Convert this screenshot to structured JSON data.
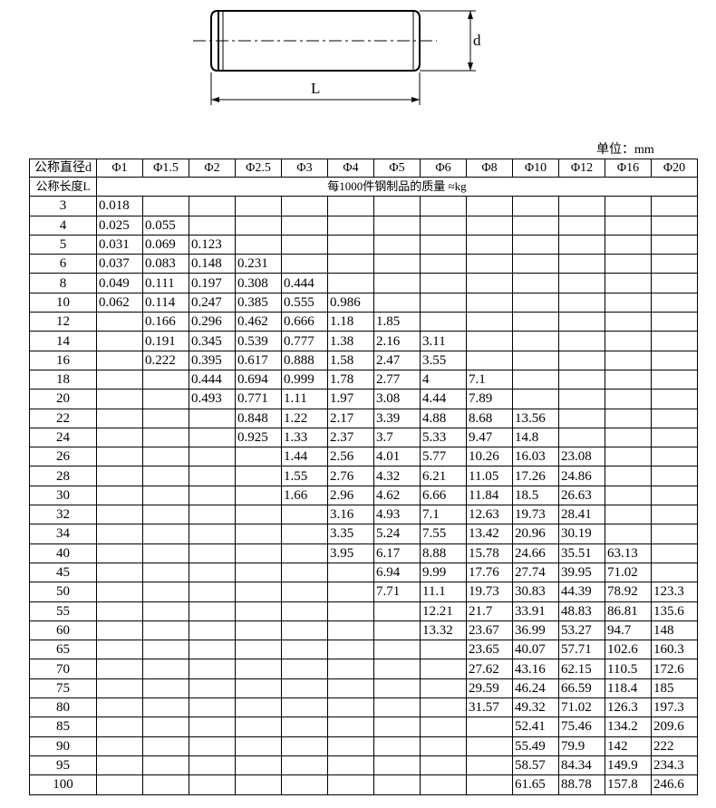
{
  "diagram": {
    "diameter_label": "d",
    "length_label": "L"
  },
  "unit": "单位：mm",
  "table": {
    "header": [
      "公称直径d",
      "Φ1",
      "Φ1.5",
      "Φ2",
      "Φ2.5",
      "Φ3",
      "Φ4",
      "Φ5",
      "Φ6",
      "Φ8",
      "Φ10",
      "Φ12",
      "Φ16",
      "Φ20"
    ],
    "subheader": [
      "公称长度L",
      "每1000件钢制品的质量 ≈kg"
    ],
    "rows": [
      [
        "3",
        "0.018",
        null,
        null,
        null,
        null,
        null,
        null,
        null,
        null,
        null,
        null,
        null,
        null
      ],
      [
        "4",
        "0.025",
        "0.055",
        null,
        null,
        null,
        null,
        null,
        null,
        null,
        null,
        null,
        null,
        null
      ],
      [
        "5",
        "0.031",
        "0.069",
        "0.123",
        null,
        null,
        null,
        null,
        null,
        null,
        null,
        null,
        null,
        null
      ],
      [
        "6",
        "0.037",
        "0.083",
        "0.148",
        "0.231",
        null,
        null,
        null,
        null,
        null,
        null,
        null,
        null,
        null
      ],
      [
        "8",
        "0.049",
        "0.111",
        "0.197",
        "0.308",
        "0.444",
        null,
        null,
        null,
        null,
        null,
        null,
        null,
        null
      ],
      [
        "10",
        "0.062",
        "0.114",
        "0.247",
        "0.385",
        "0.555",
        "0.986",
        null,
        null,
        null,
        null,
        null,
        null,
        null
      ],
      [
        "12",
        null,
        "0.166",
        "0.296",
        "0.462",
        "0.666",
        "1.18",
        "1.85",
        null,
        null,
        null,
        null,
        null,
        null
      ],
      [
        "14",
        null,
        "0.191",
        "0.345",
        "0.539",
        "0.777",
        "1.38",
        "2.16",
        "3.11",
        null,
        null,
        null,
        null,
        null
      ],
      [
        "16",
        null,
        "0.222",
        "0.395",
        "0.617",
        "0.888",
        "1.58",
        "2.47",
        "3.55",
        null,
        null,
        null,
        null,
        null
      ],
      [
        "18",
        null,
        null,
        "0.444",
        "0.694",
        "0.999",
        "1.78",
        "2.77",
        "4",
        "7.1",
        null,
        null,
        null,
        null
      ],
      [
        "20",
        null,
        null,
        "0.493",
        "0.771",
        "1.11",
        "1.97",
        "3.08",
        "4.44",
        "7.89",
        null,
        null,
        null,
        null
      ],
      [
        "22",
        null,
        null,
        null,
        "0.848",
        "1.22",
        "2.17",
        "3.39",
        "4.88",
        "8.68",
        "13.56",
        null,
        null,
        null
      ],
      [
        "24",
        null,
        null,
        null,
        "0.925",
        "1.33",
        "2.37",
        "3.7",
        "5.33",
        "9.47",
        "14.8",
        null,
        null,
        null
      ],
      [
        "26",
        null,
        null,
        null,
        null,
        "1.44",
        "2.56",
        "4.01",
        "5.77",
        "10.26",
        "16.03",
        "23.08",
        null,
        null
      ],
      [
        "28",
        null,
        null,
        null,
        null,
        "1.55",
        "2.76",
        "4.32",
        "6.21",
        "11.05",
        "17.26",
        "24.86",
        null,
        null
      ],
      [
        "30",
        null,
        null,
        null,
        null,
        "1.66",
        "2.96",
        "4.62",
        "6.66",
        "11.84",
        "18.5",
        "26.63",
        null,
        null
      ],
      [
        "32",
        null,
        null,
        null,
        null,
        null,
        "3.16",
        "4.93",
        "7.1",
        "12.63",
        "19.73",
        "28.41",
        null,
        null
      ],
      [
        "34",
        null,
        null,
        null,
        null,
        null,
        "3.35",
        "5.24",
        "7.55",
        "13.42",
        "20.96",
        "30.19",
        null,
        null
      ],
      [
        "40",
        null,
        null,
        null,
        null,
        null,
        "3.95",
        "6.17",
        "8.88",
        "15.78",
        "24.66",
        "35.51",
        "63.13",
        null
      ],
      [
        "45",
        null,
        null,
        null,
        null,
        null,
        null,
        "6.94",
        "9.99",
        "17.76",
        "27.74",
        "39.95",
        "71.02",
        null
      ],
      [
        "50",
        null,
        null,
        null,
        null,
        null,
        null,
        "7.71",
        "11.1",
        "19.73",
        "30.83",
        "44.39",
        "78.92",
        "123.3"
      ],
      [
        "55",
        null,
        null,
        null,
        null,
        null,
        null,
        null,
        "12.21",
        "21.7",
        "33.91",
        "48.83",
        "86.81",
        "135.6"
      ],
      [
        "60",
        null,
        null,
        null,
        null,
        null,
        null,
        null,
        "13.32",
        "23.67",
        "36.99",
        "53.27",
        "94.7",
        "148"
      ],
      [
        "65",
        null,
        null,
        null,
        null,
        null,
        null,
        null,
        null,
        "23.65",
        "40.07",
        "57.71",
        "102.6",
        "160.3"
      ],
      [
        "70",
        null,
        null,
        null,
        null,
        null,
        null,
        null,
        null,
        "27.62",
        "43.16",
        "62.15",
        "110.5",
        "172.6"
      ],
      [
        "75",
        null,
        null,
        null,
        null,
        null,
        null,
        null,
        null,
        "29.59",
        "46.24",
        "66.59",
        "118.4",
        "185"
      ],
      [
        "80",
        null,
        null,
        null,
        null,
        null,
        null,
        null,
        null,
        "31.57",
        "49.32",
        "71.02",
        "126.3",
        "197.3"
      ],
      [
        "85",
        null,
        null,
        null,
        null,
        null,
        null,
        null,
        null,
        null,
        "52.41",
        "75.46",
        "134.2",
        "209.6"
      ],
      [
        "90",
        null,
        null,
        null,
        null,
        null,
        null,
        null,
        null,
        null,
        "55.49",
        "79.9",
        "142",
        "222"
      ],
      [
        "95",
        null,
        null,
        null,
        null,
        null,
        null,
        null,
        null,
        null,
        "58.57",
        "84.34",
        "149.9",
        "234.3"
      ],
      [
        "100",
        null,
        null,
        null,
        null,
        null,
        null,
        null,
        null,
        null,
        "61.65",
        "88.78",
        "157.8",
        "246.6"
      ]
    ]
  }
}
